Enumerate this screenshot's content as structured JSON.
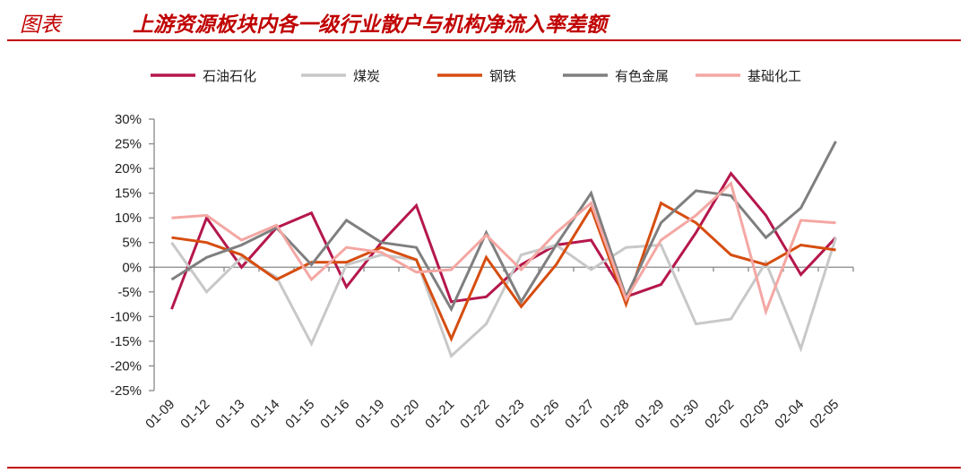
{
  "header": {
    "label": "图表",
    "title": "上游资源板块内各一级行业散户与机构净流入率差额"
  },
  "chart_data": {
    "type": "line",
    "title": "上游资源板块内各一级行业散户与机构净流入率差额",
    "xlabel": "",
    "ylabel": "",
    "categories": [
      "01-09",
      "01-12",
      "01-13",
      "01-14",
      "01-15",
      "01-16",
      "01-19",
      "01-20",
      "01-21",
      "01-22",
      "01-23",
      "01-26",
      "01-27",
      "01-28",
      "01-29",
      "01-30",
      "02-02",
      "02-03",
      "02-04",
      "02-05"
    ],
    "ylim": [
      -0.25,
      0.3
    ],
    "yticks": [
      0.3,
      0.25,
      0.2,
      0.15,
      0.1,
      0.05,
      0.0,
      -0.05,
      -0.1,
      -0.15,
      -0.2,
      -0.25
    ],
    "ytick_labels": [
      "30%",
      "25%",
      "20%",
      "15%",
      "10%",
      "5%",
      "0%",
      "-5%",
      "-10%",
      "-15%",
      "-20%",
      "-25%"
    ],
    "grid": false,
    "legend_position": "top",
    "series": [
      {
        "name": "石油石化",
        "color": "#b5174b",
        "values": [
          -0.085,
          0.1,
          0.0,
          0.08,
          0.11,
          -0.04,
          0.05,
          0.125,
          -0.07,
          -0.06,
          0.005,
          0.045,
          0.055,
          -0.06,
          -0.035,
          0.07,
          0.19,
          0.105,
          -0.015,
          0.06
        ]
      },
      {
        "name": "煤炭",
        "color": "#c8c8c8",
        "values": [
          0.05,
          -0.05,
          0.02,
          -0.02,
          -0.155,
          0.005,
          0.025,
          0.015,
          -0.18,
          -0.115,
          0.025,
          0.045,
          -0.005,
          0.04,
          0.045,
          -0.115,
          -0.105,
          0.01,
          -0.165,
          0.06
        ]
      },
      {
        "name": "钢铁",
        "color": "#d64d10",
        "values": [
          0.06,
          0.05,
          0.025,
          -0.025,
          0.01,
          0.01,
          0.04,
          0.015,
          -0.145,
          0.02,
          -0.08,
          0.005,
          0.12,
          -0.075,
          0.13,
          0.09,
          0.025,
          0.005,
          0.045,
          0.035
        ]
      },
      {
        "name": "有色金属",
        "color": "#7f7f7f",
        "values": [
          -0.025,
          0.02,
          0.045,
          0.08,
          0.005,
          0.095,
          0.05,
          0.04,
          -0.085,
          0.07,
          -0.07,
          0.045,
          0.15,
          -0.06,
          0.09,
          0.155,
          0.145,
          0.06,
          0.12,
          0.255
        ]
      },
      {
        "name": "基础化工",
        "color": "#f4a7a3",
        "values": [
          0.1,
          0.105,
          0.055,
          0.085,
          -0.025,
          0.04,
          0.03,
          -0.01,
          -0.005,
          0.065,
          -0.005,
          0.07,
          0.13,
          -0.065,
          0.055,
          0.105,
          0.17,
          -0.09,
          0.095,
          0.09
        ]
      }
    ]
  }
}
